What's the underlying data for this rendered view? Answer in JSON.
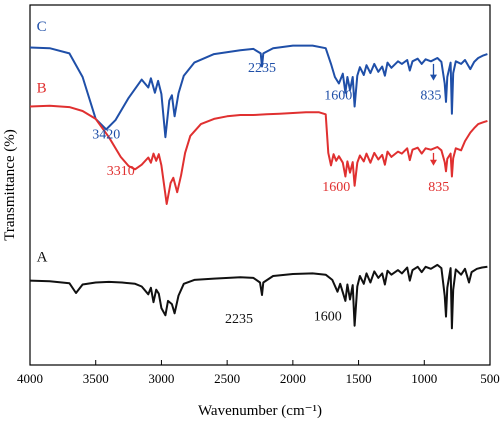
{
  "chart_data": {
    "type": "line",
    "title": "",
    "xlabel": "Wavenumber (cm⁻¹)",
    "ylabel": "Transmittance (%)",
    "xlim": [
      4000,
      500
    ],
    "x_reversed": true,
    "x_ticks": [
      "4000",
      "3500",
      "3000",
      "2500",
      "2000",
      "1500",
      "1000",
      "500"
    ],
    "y_tick_labels_shown": false,
    "grid": false,
    "series": [
      {
        "name": "C",
        "color": "#1f4fa8",
        "points": [
          [
            4000,
            88.5
          ],
          [
            3850,
            88.4
          ],
          [
            3700,
            87.6
          ],
          [
            3600,
            84.0
          ],
          [
            3500,
            77.6
          ],
          [
            3420,
            76.0
          ],
          [
            3350,
            77.4
          ],
          [
            3250,
            80.8
          ],
          [
            3150,
            83.6
          ],
          [
            3100,
            82.4
          ],
          [
            3080,
            83.8
          ],
          [
            3050,
            81.6
          ],
          [
            3025,
            83.4
          ],
          [
            3000,
            81.4
          ],
          [
            2970,
            74.8
          ],
          [
            2940,
            80.4
          ],
          [
            2920,
            81.2
          ],
          [
            2900,
            78.0
          ],
          [
            2870,
            81.5
          ],
          [
            2830,
            84.2
          ],
          [
            2750,
            86.2
          ],
          [
            2600,
            87.5
          ],
          [
            2400,
            88.1
          ],
          [
            2300,
            88.3
          ],
          [
            2245,
            87.6
          ],
          [
            2235,
            85.6
          ],
          [
            2225,
            87.6
          ],
          [
            2150,
            88.4
          ],
          [
            2000,
            88.8
          ],
          [
            1850,
            88.8
          ],
          [
            1750,
            88.4
          ],
          [
            1710,
            86.0
          ],
          [
            1680,
            84.0
          ],
          [
            1650,
            83.0
          ],
          [
            1620,
            84.5
          ],
          [
            1600,
            81.6
          ],
          [
            1585,
            84.0
          ],
          [
            1565,
            82.0
          ],
          [
            1545,
            84.0
          ],
          [
            1530,
            79.5
          ],
          [
            1510,
            84.2
          ],
          [
            1490,
            85.5
          ],
          [
            1460,
            84.3
          ],
          [
            1440,
            85.8
          ],
          [
            1410,
            84.6
          ],
          [
            1380,
            86.0
          ],
          [
            1350,
            84.8
          ],
          [
            1320,
            85.6
          ],
          [
            1300,
            84.2
          ],
          [
            1280,
            86.2
          ],
          [
            1250,
            85.4
          ],
          [
            1200,
            86.4
          ],
          [
            1170,
            86.0
          ],
          [
            1130,
            86.6
          ],
          [
            1110,
            85.0
          ],
          [
            1090,
            86.4
          ],
          [
            1050,
            86.8
          ],
          [
            1020,
            86.0
          ],
          [
            990,
            86.7
          ],
          [
            950,
            86.4
          ],
          [
            900,
            86.9
          ],
          [
            870,
            86.3
          ],
          [
            845,
            83.0
          ],
          [
            835,
            80.2
          ],
          [
            825,
            84.0
          ],
          [
            800,
            86.2
          ],
          [
            790,
            78.4
          ],
          [
            780,
            84.6
          ],
          [
            760,
            86.4
          ],
          [
            720,
            86.0
          ],
          [
            690,
            86.6
          ],
          [
            650,
            85.2
          ],
          [
            620,
            86.3
          ],
          [
            590,
            86.9
          ],
          [
            550,
            87.3
          ],
          [
            520,
            87.5
          ]
        ]
      },
      {
        "name": "B",
        "color": "#e03030",
        "points": [
          [
            4000,
            79.5
          ],
          [
            3850,
            79.6
          ],
          [
            3700,
            79.4
          ],
          [
            3600,
            78.8
          ],
          [
            3500,
            77.6
          ],
          [
            3400,
            74.8
          ],
          [
            3310,
            71.8
          ],
          [
            3250,
            70.4
          ],
          [
            3200,
            69.9
          ],
          [
            3150,
            70.6
          ],
          [
            3100,
            71.7
          ],
          [
            3080,
            70.9
          ],
          [
            3060,
            72.3
          ],
          [
            3040,
            71.2
          ],
          [
            3020,
            72.2
          ],
          [
            3000,
            70.5
          ],
          [
            2960,
            64.6
          ],
          [
            2930,
            67.8
          ],
          [
            2910,
            68.6
          ],
          [
            2880,
            66.4
          ],
          [
            2850,
            69.0
          ],
          [
            2820,
            72.4
          ],
          [
            2780,
            75.0
          ],
          [
            2700,
            76.8
          ],
          [
            2600,
            77.6
          ],
          [
            2500,
            78.0
          ],
          [
            2400,
            78.2
          ],
          [
            2300,
            78.2
          ],
          [
            2200,
            78.3
          ],
          [
            2100,
            78.4
          ],
          [
            2000,
            78.5
          ],
          [
            1900,
            78.6
          ],
          [
            1800,
            78.6
          ],
          [
            1750,
            78.3
          ],
          [
            1730,
            72.4
          ],
          [
            1710,
            70.5
          ],
          [
            1690,
            72.2
          ],
          [
            1670,
            71.2
          ],
          [
            1650,
            71.9
          ],
          [
            1620,
            70.9
          ],
          [
            1600,
            68.8
          ],
          [
            1585,
            71.1
          ],
          [
            1565,
            69.4
          ],
          [
            1545,
            71.0
          ],
          [
            1530,
            67.4
          ],
          [
            1510,
            70.9
          ],
          [
            1490,
            72.0
          ],
          [
            1460,
            71.1
          ],
          [
            1440,
            72.3
          ],
          [
            1410,
            70.9
          ],
          [
            1380,
            72.4
          ],
          [
            1350,
            71.4
          ],
          [
            1320,
            72.1
          ],
          [
            1300,
            70.6
          ],
          [
            1280,
            72.6
          ],
          [
            1250,
            71.8
          ],
          [
            1200,
            72.6
          ],
          [
            1170,
            72.3
          ],
          [
            1130,
            73.1
          ],
          [
            1110,
            71.3
          ],
          [
            1090,
            72.9
          ],
          [
            1050,
            73.2
          ],
          [
            1020,
            72.3
          ],
          [
            990,
            73.1
          ],
          [
            950,
            72.9
          ],
          [
            900,
            73.3
          ],
          [
            870,
            72.8
          ],
          [
            845,
            71.0
          ],
          [
            835,
            69.6
          ],
          [
            825,
            71.5
          ],
          [
            800,
            72.3
          ],
          [
            790,
            68.8
          ],
          [
            780,
            71.6
          ],
          [
            760,
            73.1
          ],
          [
            720,
            72.8
          ],
          [
            690,
            74.2
          ],
          [
            650,
            75.5
          ],
          [
            620,
            76.2
          ],
          [
            590,
            76.8
          ],
          [
            550,
            77.1
          ],
          [
            520,
            77.3
          ]
        ]
      },
      {
        "name": "A",
        "color": "#111111",
        "points": [
          [
            4000,
            52.9
          ],
          [
            3850,
            52.8
          ],
          [
            3700,
            52.5
          ],
          [
            3650,
            51.0
          ],
          [
            3600,
            52.3
          ],
          [
            3500,
            52.6
          ],
          [
            3400,
            52.7
          ],
          [
            3300,
            52.6
          ],
          [
            3200,
            52.4
          ],
          [
            3150,
            52.0
          ],
          [
            3100,
            50.8
          ],
          [
            3080,
            51.8
          ],
          [
            3060,
            49.6
          ],
          [
            3040,
            51.5
          ],
          [
            3020,
            50.9
          ],
          [
            3000,
            48.7
          ],
          [
            2970,
            47.6
          ],
          [
            2950,
            49.8
          ],
          [
            2920,
            49.3
          ],
          [
            2900,
            47.9
          ],
          [
            2870,
            50.6
          ],
          [
            2830,
            52.4
          ],
          [
            2750,
            53.0
          ],
          [
            2600,
            53.2
          ],
          [
            2400,
            53.4
          ],
          [
            2300,
            53.3
          ],
          [
            2250,
            52.6
          ],
          [
            2235,
            50.7
          ],
          [
            2225,
            52.6
          ],
          [
            2150,
            53.6
          ],
          [
            2000,
            53.9
          ],
          [
            1850,
            54.0
          ],
          [
            1750,
            53.8
          ],
          [
            1700,
            53.0
          ],
          [
            1660,
            51.2
          ],
          [
            1640,
            52.4
          ],
          [
            1600,
            49.8
          ],
          [
            1585,
            52.3
          ],
          [
            1565,
            50.0
          ],
          [
            1545,
            52.2
          ],
          [
            1530,
            46.0
          ],
          [
            1510,
            52.0
          ],
          [
            1490,
            53.6
          ],
          [
            1460,
            52.4
          ],
          [
            1440,
            54.0
          ],
          [
            1410,
            52.6
          ],
          [
            1380,
            54.3
          ],
          [
            1350,
            53.3
          ],
          [
            1320,
            54.0
          ],
          [
            1300,
            52.3
          ],
          [
            1280,
            54.4
          ],
          [
            1250,
            53.8
          ],
          [
            1200,
            54.5
          ],
          [
            1170,
            54.0
          ],
          [
            1130,
            54.9
          ],
          [
            1110,
            52.9
          ],
          [
            1090,
            54.5
          ],
          [
            1050,
            55.0
          ],
          [
            1020,
            54.2
          ],
          [
            990,
            55.0
          ],
          [
            950,
            54.7
          ],
          [
            900,
            55.3
          ],
          [
            870,
            54.8
          ],
          [
            845,
            50.6
          ],
          [
            835,
            47.4
          ],
          [
            825,
            51.8
          ],
          [
            800,
            54.8
          ],
          [
            790,
            45.6
          ],
          [
            780,
            51.5
          ],
          [
            760,
            54.6
          ],
          [
            720,
            53.8
          ],
          [
            690,
            54.7
          ],
          [
            660,
            52.6
          ],
          [
            640,
            54.2
          ],
          [
            600,
            54.7
          ],
          [
            560,
            54.9
          ],
          [
            520,
            55.0
          ]
        ]
      }
    ],
    "annotations": [
      {
        "text": "C",
        "series": "C",
        "color": "#1f4fa8",
        "x": 3950,
        "y": 91.0
      },
      {
        "text": "B",
        "series": "B",
        "color": "#e03030",
        "x": 3950,
        "y": 81.6
      },
      {
        "text": "A",
        "series": "A",
        "color": "#111111",
        "x": 3950,
        "y": 55.8
      },
      {
        "text": "3420",
        "color": "#1f4fa8",
        "x": 3420,
        "y": 74.6
      },
      {
        "text": "2235",
        "color": "#1f4fa8",
        "x": 2235,
        "y": 84.8
      },
      {
        "text": "1600",
        "color": "#1f4fa8",
        "x": 1655,
        "y": 80.6
      },
      {
        "text": "835",
        "color": "#1f4fa8",
        "x": 950,
        "y": 80.6
      },
      {
        "text": "3310",
        "color": "#e03030",
        "x": 3310,
        "y": 69.0
      },
      {
        "text": "1600",
        "color": "#e03030",
        "x": 1670,
        "y": 66.6
      },
      {
        "text": "835",
        "color": "#e03030",
        "x": 890,
        "y": 66.6
      },
      {
        "text": "2235",
        "color": "#111111",
        "x": 2410,
        "y": 46.4
      },
      {
        "text": "1600",
        "color": "#111111",
        "x": 1735,
        "y": 46.8
      }
    ],
    "arrows": [
      {
        "color": "#1f4fa8",
        "x": 930,
        "y_from": 86.0,
        "y_to": 83.6
      },
      {
        "color": "#e03030",
        "x": 930,
        "y_from": 72.4,
        "y_to": 70.6
      }
    ]
  }
}
